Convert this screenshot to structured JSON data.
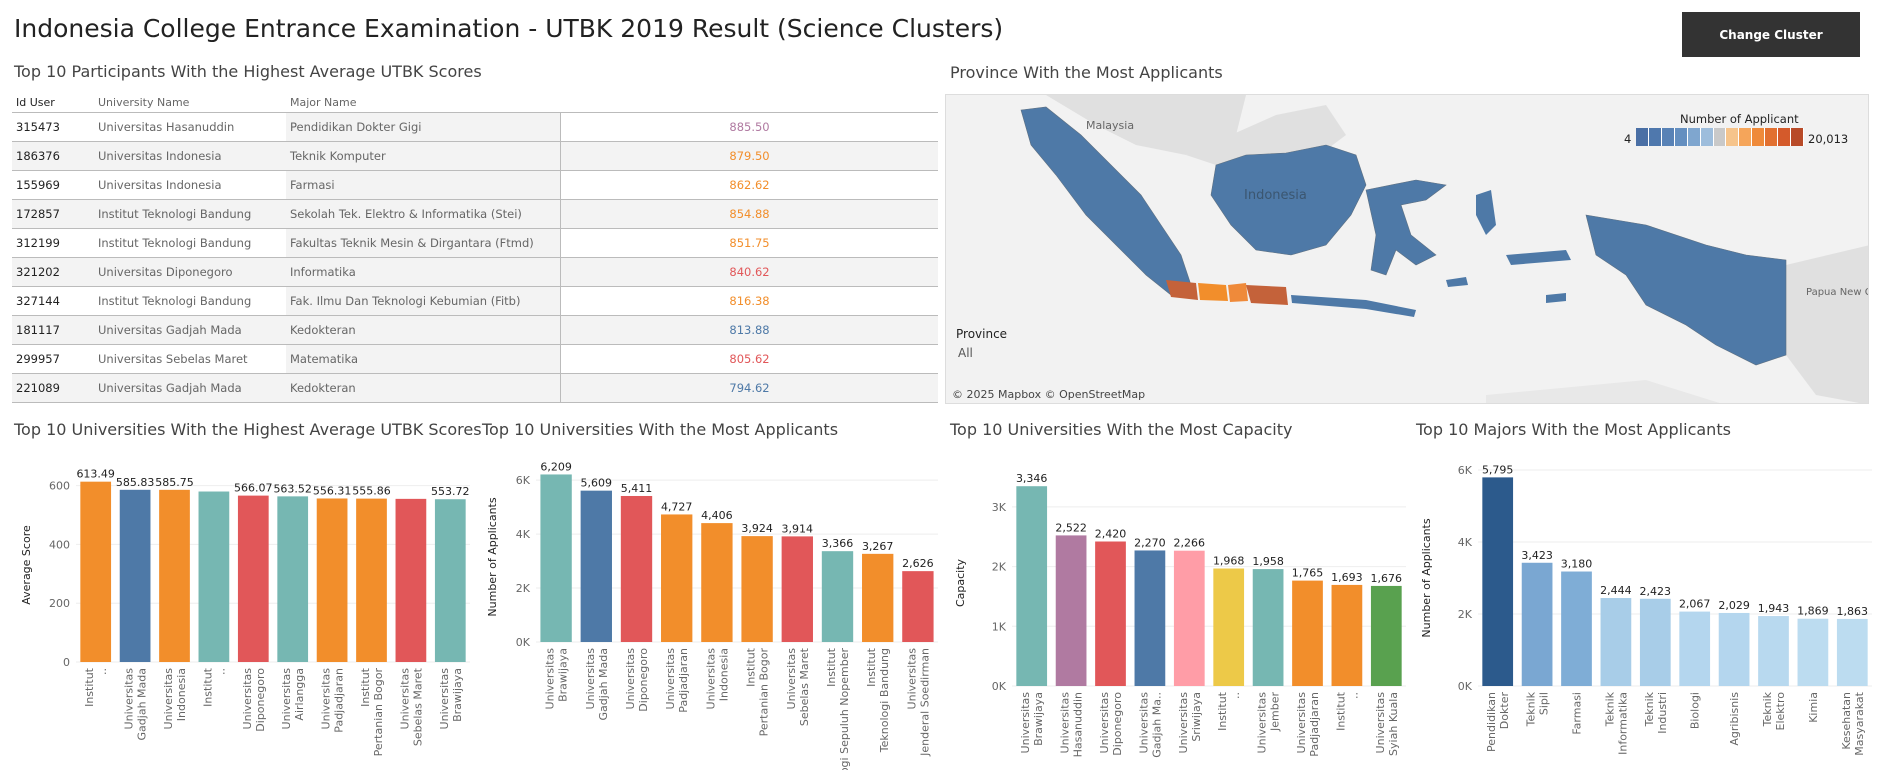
{
  "header": {
    "title": "Indonesia College Entrance Examination - UTBK 2019 Result (Science Clusters)",
    "change_button": "Change Cluster"
  },
  "participants": {
    "title": "Top 10 Participants With the Highest Average UTBK Scores",
    "columns": [
      "Id User",
      "University Name",
      "Major Name"
    ],
    "rows": [
      {
        "id": "315473",
        "university": "Universitas Hasanuddin",
        "major": "Pendidikan Dokter Gigi",
        "score": "885.50",
        "color": "#b07aa1"
      },
      {
        "id": "186376",
        "university": "Universitas Indonesia",
        "major": "Teknik Komputer",
        "score": "879.50",
        "color": "#f28e2b"
      },
      {
        "id": "155969",
        "university": "Universitas Indonesia",
        "major": "Farmasi",
        "score": "862.62",
        "color": "#f28e2b"
      },
      {
        "id": "172857",
        "university": "Institut Teknologi Bandung",
        "major": "Sekolah Tek. Elektro & Informatika (Stei)",
        "score": "854.88",
        "color": "#f28e2b"
      },
      {
        "id": "312199",
        "university": "Institut Teknologi Bandung",
        "major": "Fakultas Teknik Mesin & Dirgantara (Ftmd)",
        "score": "851.75",
        "color": "#f28e2b"
      },
      {
        "id": "321202",
        "university": "Universitas Diponegoro",
        "major": "Informatika",
        "score": "840.62",
        "color": "#e15759"
      },
      {
        "id": "327144",
        "university": "Institut Teknologi Bandung",
        "major": "Fak. Ilmu Dan Teknologi Kebumian (Fitb)",
        "score": "816.38",
        "color": "#f28e2b"
      },
      {
        "id": "181117",
        "university": "Universitas Gadjah Mada",
        "major": "Kedokteran",
        "score": "813.88",
        "color": "#4e79a7"
      },
      {
        "id": "299957",
        "university": "Universitas Sebelas Maret",
        "major": "Matematika",
        "score": "805.62",
        "color": "#e15759"
      },
      {
        "id": "221089",
        "university": "Universitas Gadjah Mada",
        "major": "Kedokteran",
        "score": "794.62",
        "color": "#4e79a7"
      }
    ]
  },
  "map": {
    "title": "Province With the Most Applicants",
    "legend_title": "Number of Applicant",
    "legend_min": "4",
    "legend_max": "20,013",
    "legend_colors": [
      "#4a6fa5",
      "#4f78ad",
      "#5882b6",
      "#648fc0",
      "#7fa6cf",
      "#9dbddc",
      "#c9c9c9",
      "#f6c48b",
      "#f5a55a",
      "#ef8a3a",
      "#e27030",
      "#d45a2b",
      "#b84a28"
    ],
    "country_label": "Indonesia",
    "neighbor_labels": [
      "Malaysia",
      "Papua New Guinea"
    ],
    "filter_label": "Province",
    "filter_value": "All",
    "credit": "© 2025 Mapbox © OpenStreetMap"
  },
  "chart_data": [
    {
      "type": "bar",
      "title": "Top 10 Universities With the Highest Average UTBK Scores",
      "ylabel": "Average Score",
      "xlabel": "",
      "ylim": [
        0,
        660
      ],
      "yticks": [
        0,
        200,
        400,
        600
      ],
      "ytick_labels": [
        "0",
        "200",
        "400",
        "600"
      ],
      "categories": [
        "Institut ..",
        "Universitas Gadjah Mada",
        "Universitas Indonesia",
        "Institut ..",
        "Universitas Diponegoro",
        "Universitas Airlangga",
        "Universitas Padjadjaran",
        "Institut Pertanian Bogor",
        "Universitas Sebelas Maret",
        "Universitas Brawijaya"
      ],
      "values": [
        613.49,
        585.83,
        585.75,
        580,
        566.07,
        563.52,
        556.31,
        555.86,
        555,
        553.72
      ],
      "labels": [
        "613.49",
        "585.83",
        "585.75",
        "",
        "566.07",
        "563.52",
        "556.31",
        "555.86",
        "",
        "553.72"
      ],
      "colors": [
        "#f28e2b",
        "#4e79a7",
        "#f28e2b",
        "#76b7b2",
        "#e15759",
        "#76b7b2",
        "#f28e2b",
        "#f28e2b",
        "#e15759",
        "#76b7b2"
      ]
    },
    {
      "type": "bar",
      "title": "Top 10 Universities With the Most Applicants",
      "ylabel": "Number of Applicants",
      "xlabel": "",
      "ylim": [
        0,
        6300
      ],
      "yticks": [
        0,
        2000,
        4000,
        6000
      ],
      "ytick_labels": [
        "0K",
        "2K",
        "4K",
        "6K"
      ],
      "categories": [
        "Universitas Brawijaya",
        "Universitas Gadjah Mada",
        "Universitas Diponegoro",
        "Universitas Padjadjaran",
        "Universitas Indonesia",
        "Institut Pertanian Bogor",
        "Universitas Sebelas Maret",
        "Institut Teknologi Sepuluh Nopember",
        "Institut Teknologi Bandung",
        "Universitas Jenderal Soedirman"
      ],
      "values": [
        6209,
        5609,
        5411,
        4727,
        4406,
        3924,
        3914,
        3366,
        3267,
        2626
      ],
      "labels": [
        "6,209",
        "5,609",
        "5,411",
        "4,727",
        "4,406",
        "3,924",
        "3,914",
        "3,366",
        "3,267",
        "2,626"
      ],
      "colors": [
        "#76b7b2",
        "#4e79a7",
        "#e15759",
        "#f28e2b",
        "#f28e2b",
        "#f28e2b",
        "#e15759",
        "#76b7b2",
        "#f28e2b",
        "#e15759"
      ]
    },
    {
      "type": "bar",
      "title": "Top 10 Universities With the Most Capacity",
      "ylabel": "Capacity",
      "xlabel": "",
      "ylim": [
        0,
        3450
      ],
      "yticks": [
        0,
        1000,
        2000,
        3000
      ],
      "ytick_labels": [
        "0K",
        "1K",
        "2K",
        "3K"
      ],
      "categories": [
        "Universitas Brawijaya",
        "Universitas Hasanuddin",
        "Universitas Diponegoro",
        "Universitas Gadjah Ma..",
        "Universitas Sriwijaya",
        "Institut ..",
        "Universitas Jember",
        "Universitas Padjadjaran",
        "Institut ..",
        "Universitas Syiah Kuala"
      ],
      "values": [
        3346,
        2522,
        2420,
        2270,
        2266,
        1968,
        1958,
        1765,
        1693,
        1676
      ],
      "labels": [
        "3,346",
        "2,522",
        "2,420",
        "2,270",
        "2,266",
        "1,968",
        "1,958",
        "1,765",
        "1,693",
        "1,676"
      ],
      "colors": [
        "#76b7b2",
        "#b07aa1",
        "#e15759",
        "#4e79a7",
        "#ff9da7",
        "#edc948",
        "#76b7b2",
        "#f28e2b",
        "#f28e2b",
        "#59a14f"
      ]
    },
    {
      "type": "bar",
      "title": "Top 10 Majors With the Most Applicants",
      "ylabel": "Number of Applicants",
      "xlabel": "",
      "ylim": [
        0,
        6000
      ],
      "yticks": [
        0,
        2000,
        4000,
        6000
      ],
      "ytick_labels": [
        "0K",
        "2K",
        "4K",
        "6K"
      ],
      "categories": [
        "Pendidikan Dokter",
        "Teknik Sipil",
        "Farmasi",
        "Teknik Informatika",
        "Teknik Industri",
        "Biologi",
        "Agribisnis",
        "Teknik Elektro",
        "Kimia",
        "Kesehatan Masyarakat"
      ],
      "values": [
        5795,
        3423,
        3180,
        2444,
        2423,
        2067,
        2029,
        1943,
        1869,
        1863
      ],
      "labels": [
        "5,795",
        "3,423",
        "3,180",
        "2,444",
        "2,423",
        "2,067",
        "2,029",
        "1,943",
        "1,869",
        "1,863"
      ],
      "colors": [
        "#2c5a8c",
        "#7aa7d2",
        "#7fadd6",
        "#a8cde8",
        "#a8cde8",
        "#b4d6ee",
        "#b4d6ee",
        "#b8d9ef",
        "#bcdcf0",
        "#bcdcf0"
      ]
    }
  ]
}
